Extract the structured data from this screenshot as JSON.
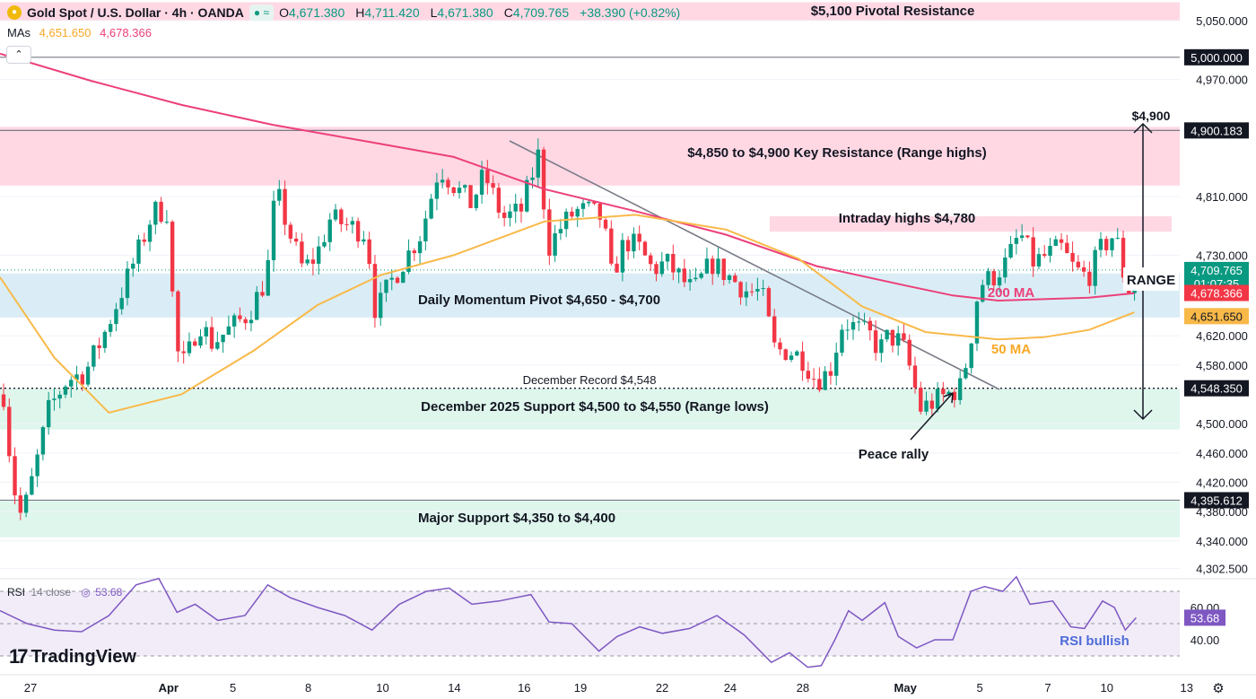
{
  "header": {
    "symbol": "Gold Spot / U.S. Dollar · 4h · OANDA",
    "open_label": "O",
    "open": "4,671.380",
    "high_label": "H",
    "high": "4,711.420",
    "low_label": "L",
    "low": "4,671.380",
    "close_label": "C",
    "close": "4,709.765",
    "change": "+38.390 (+0.82%)",
    "collapse_icon": "chevron-up-icon"
  },
  "mas": {
    "label": "MAs",
    "ma50": "4,651.650",
    "ma200": "4,678.366"
  },
  "rsi_header": {
    "label": "RSI",
    "params": "14 close",
    "value": "53.68"
  },
  "logo": {
    "text": "TradingView"
  },
  "colors": {
    "up": "#089981",
    "down": "#f23645",
    "ma200": "#ec407a",
    "ma50": "#f9b949",
    "resistance_zone": "#ffd1df",
    "pivot_zone": "#d6ebf5",
    "support_zone": "#d9f5ea",
    "rsi_line": "#7e57c2",
    "rsi_band": "#ede7f6"
  },
  "chart_data": {
    "type": "candlestick",
    "title": "Gold Spot / U.S. Dollar · 4h · OANDA",
    "y_axis": {
      "ticks": [
        "5,050.000",
        "4,970.000",
        "4,810.000",
        "4,730.000",
        "4,620.000",
        "4,580.000",
        "4,500.000",
        "4,460.000",
        "4,420.000",
        "4,380.000",
        "4,340.000",
        "4,302.500"
      ],
      "tick_values": [
        5050,
        4970,
        4810,
        4730,
        4620,
        4580,
        4500,
        4460,
        4420,
        4380,
        4340,
        4302.5
      ],
      "range": [
        4290,
        5070
      ]
    },
    "x_axis": {
      "ticks": [
        "27",
        "Apr",
        "5",
        "8",
        "10",
        "14",
        "16",
        "19",
        "22",
        "24",
        "28",
        "May",
        "5",
        "7",
        "10",
        "13"
      ],
      "tick_index": [
        4,
        156,
        227,
        310,
        392,
        471,
        548,
        610,
        700,
        775,
        855,
        968,
        1050,
        1125,
        1190,
        1278
      ]
    },
    "price_labels": [
      {
        "value": 5000.0,
        "text": "5,000.000",
        "style": "dark"
      },
      {
        "value": 4900.183,
        "text": "4,900.183",
        "style": "dark"
      },
      {
        "value": 4709.765,
        "text": "4,709.765",
        "sub": "01:07:35",
        "style": "up"
      },
      {
        "value": 4678.366,
        "text": "4,678.366",
        "style": "ma200"
      },
      {
        "value": 4651.65,
        "text": "4,651.650",
        "style": "ma50"
      },
      {
        "value": 4548.35,
        "text": "4,548.350",
        "style": "dark"
      },
      {
        "value": 4395.612,
        "text": "4,395.612",
        "style": "dark"
      }
    ],
    "zones": [
      {
        "label": "$5,100 Pivotal Resistance",
        "from": 5050,
        "to": 5075,
        "color": "#ffd1df"
      },
      {
        "label": "$4,850 to $4,900 Key Resistance (Range highs)",
        "from": 4825,
        "to": 4905,
        "color": "#ffd1df"
      },
      {
        "label": "Intraday highs $4,780",
        "from": 4762,
        "to": 4783,
        "color": "#ffd1df"
      },
      {
        "label": "Daily Momentum Pivot $4,650 - $4,700",
        "from": 4645,
        "to": 4705,
        "color": "#d6ebf5"
      },
      {
        "label": "December 2025 Support $4,500 to $4,550 (Range lows)",
        "from": 4492,
        "to": 4548,
        "color": "#d9f5ea"
      },
      {
        "label": "Major Support $4,350 to $4,400",
        "from": 4345,
        "to": 4395,
        "color": "#d9f5ea"
      }
    ],
    "levels": [
      {
        "value": 5000,
        "style": "solid"
      },
      {
        "value": 4900.183,
        "style": "solid"
      },
      {
        "value": 4548.35,
        "style": "dotted",
        "label": "December Record $4,548"
      },
      {
        "value": 4395.612,
        "style": "solid"
      }
    ],
    "annotations": {
      "range_label": "RANGE",
      "range_top_label": "$4,900",
      "ma200_label": "200 MA",
      "ma50_label": "50 MA",
      "peace_rally": "Peace rally",
      "rsi_note": "RSI bullish"
    },
    "ma200_points": [
      {
        "x": 0,
        "y": 5005
      },
      {
        "x": 100,
        "y": 4968
      },
      {
        "x": 200,
        "y": 4935
      },
      {
        "x": 300,
        "y": 4908
      },
      {
        "x": 400,
        "y": 4886
      },
      {
        "x": 500,
        "y": 4864
      },
      {
        "x": 600,
        "y": 4820
      },
      {
        "x": 700,
        "y": 4790
      },
      {
        "x": 800,
        "y": 4758
      },
      {
        "x": 900,
        "y": 4715
      },
      {
        "x": 1000,
        "y": 4688
      },
      {
        "x": 1050,
        "y": 4675
      },
      {
        "x": 1100,
        "y": 4668
      },
      {
        "x": 1150,
        "y": 4670
      },
      {
        "x": 1200,
        "y": 4672
      },
      {
        "x": 1250,
        "y": 4678
      }
    ],
    "ma50_points": [
      {
        "x": 0,
        "y": 4700
      },
      {
        "x": 60,
        "y": 4590
      },
      {
        "x": 120,
        "y": 4515
      },
      {
        "x": 200,
        "y": 4540
      },
      {
        "x": 280,
        "y": 4600
      },
      {
        "x": 350,
        "y": 4662
      },
      {
        "x": 420,
        "y": 4703
      },
      {
        "x": 500,
        "y": 4730
      },
      {
        "x": 600,
        "y": 4776
      },
      {
        "x": 700,
        "y": 4785
      },
      {
        "x": 800,
        "y": 4765
      },
      {
        "x": 880,
        "y": 4725
      },
      {
        "x": 950,
        "y": 4660
      },
      {
        "x": 1020,
        "y": 4625
      },
      {
        "x": 1100,
        "y": 4615
      },
      {
        "x": 1150,
        "y": 4618
      },
      {
        "x": 1200,
        "y": 4628
      },
      {
        "x": 1250,
        "y": 4652
      }
    ],
    "rsi": {
      "value": 53.68,
      "ticks": [
        "60.00",
        "40.00"
      ],
      "tick_values": [
        60,
        40
      ],
      "band": [
        30,
        70
      ],
      "range": [
        25,
        85
      ],
      "points": [
        [
          0,
          58
        ],
        [
          30,
          50
        ],
        [
          60,
          46
        ],
        [
          90,
          45
        ],
        [
          120,
          55
        ],
        [
          150,
          74
        ],
        [
          175,
          78
        ],
        [
          195,
          57
        ],
        [
          215,
          62
        ],
        [
          240,
          52
        ],
        [
          270,
          55
        ],
        [
          295,
          74
        ],
        [
          320,
          66
        ],
        [
          350,
          60
        ],
        [
          380,
          55
        ],
        [
          410,
          46
        ],
        [
          440,
          62
        ],
        [
          470,
          70
        ],
        [
          495,
          72
        ],
        [
          520,
          62
        ],
        [
          550,
          64
        ],
        [
          585,
          68
        ],
        [
          605,
          51
        ],
        [
          630,
          50
        ],
        [
          660,
          33
        ],
        [
          680,
          42
        ],
        [
          705,
          48
        ],
        [
          730,
          44
        ],
        [
          760,
          47
        ],
        [
          790,
          55
        ],
        [
          820,
          43
        ],
        [
          850,
          26
        ],
        [
          870,
          32
        ],
        [
          890,
          23
        ],
        [
          905,
          24
        ],
        [
          920,
          40
        ],
        [
          935,
          58
        ],
        [
          950,
          52
        ],
        [
          975,
          63
        ],
        [
          990,
          42
        ],
        [
          1010,
          35
        ],
        [
          1030,
          40
        ],
        [
          1050,
          40
        ],
        [
          1070,
          70
        ],
        [
          1085,
          73
        ],
        [
          1105,
          70
        ],
        [
          1120,
          79
        ],
        [
          1135,
          62
        ],
        [
          1160,
          64
        ],
        [
          1180,
          48
        ],
        [
          1195,
          47
        ],
        [
          1215,
          64
        ],
        [
          1228,
          60
        ],
        [
          1240,
          46
        ],
        [
          1252,
          53.68
        ]
      ]
    },
    "candles_note": "OHLC candles generated from path",
    "price_path": [
      [
        0,
        4540
      ],
      [
        10,
        4420
      ],
      [
        20,
        4370
      ],
      [
        35,
        4440
      ],
      [
        50,
        4520
      ],
      [
        70,
        4560
      ],
      [
        90,
        4570
      ],
      [
        110,
        4620
      ],
      [
        130,
        4680
      ],
      [
        150,
        4740
      ],
      [
        165,
        4790
      ],
      [
        180,
        4790
      ],
      [
        190,
        4600
      ],
      [
        200,
        4580
      ],
      [
        215,
        4640
      ],
      [
        230,
        4610
      ],
      [
        250,
        4630
      ],
      [
        270,
        4650
      ],
      [
        290,
        4700
      ],
      [
        300,
        4820
      ],
      [
        315,
        4760
      ],
      [
        330,
        4710
      ],
      [
        345,
        4730
      ],
      [
        360,
        4780
      ],
      [
        380,
        4770
      ],
      [
        400,
        4760
      ],
      [
        410,
        4650
      ],
      [
        425,
        4690
      ],
      [
        440,
        4720
      ],
      [
        460,
        4760
      ],
      [
        480,
        4850
      ],
      [
        500,
        4820
      ],
      [
        515,
        4800
      ],
      [
        530,
        4840
      ],
      [
        550,
        4780
      ],
      [
        570,
        4790
      ],
      [
        590,
        4870
      ],
      [
        600,
        4740
      ],
      [
        615,
        4770
      ],
      [
        630,
        4790
      ],
      [
        645,
        4790
      ],
      [
        660,
        4780
      ],
      [
        670,
        4700
      ],
      [
        685,
        4750
      ],
      [
        700,
        4740
      ],
      [
        715,
        4710
      ],
      [
        730,
        4720
      ],
      [
        745,
        4700
      ],
      [
        760,
        4680
      ],
      [
        780,
        4720
      ],
      [
        800,
        4700
      ],
      [
        820,
        4680
      ],
      [
        835,
        4680
      ],
      [
        850,
        4600
      ],
      [
        865,
        4600
      ],
      [
        880,
        4590
      ],
      [
        895,
        4560
      ],
      [
        910,
        4570
      ],
      [
        925,
        4640
      ],
      [
        940,
        4630
      ],
      [
        955,
        4620
      ],
      [
        965,
        4600
      ],
      [
        975,
        4620
      ],
      [
        990,
        4610
      ],
      [
        1000,
        4570
      ],
      [
        1010,
        4520
      ],
      [
        1025,
        4530
      ],
      [
        1040,
        4540
      ],
      [
        1055,
        4550
      ],
      [
        1065,
        4610
      ],
      [
        1075,
        4690
      ],
      [
        1090,
        4700
      ],
      [
        1105,
        4720
      ],
      [
        1120,
        4760
      ],
      [
        1135,
        4720
      ],
      [
        1150,
        4730
      ],
      [
        1165,
        4740
      ],
      [
        1180,
        4710
      ],
      [
        1195,
        4700
      ],
      [
        1210,
        4740
      ],
      [
        1225,
        4760
      ],
      [
        1238,
        4680
      ],
      [
        1252,
        4709.765
      ]
    ]
  }
}
